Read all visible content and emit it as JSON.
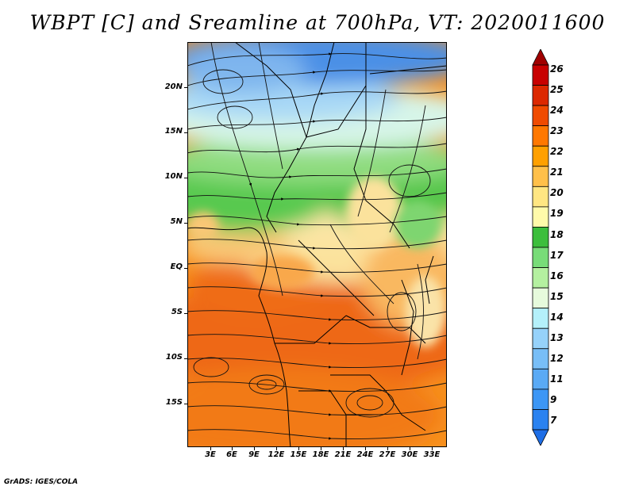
{
  "title": "WBPT [C] and Sreamline at 700hPa, VT: 2020011600",
  "footer": "GrADS: IGES/COLA",
  "lat_labels": [
    "20N",
    "15N",
    "10N",
    "5N",
    "EQ",
    "5S",
    "10S",
    "15S"
  ],
  "lon_labels": [
    "3E",
    "6E",
    "9E",
    "12E",
    "15E",
    "18E",
    "21E",
    "24E",
    "27E",
    "30E",
    "33E"
  ],
  "colorbar": {
    "labels": [
      "7",
      "9",
      "11",
      "12",
      "13",
      "14",
      "15",
      "16",
      "17",
      "18",
      "19",
      "20",
      "21",
      "22",
      "23",
      "24",
      "25",
      "26"
    ],
    "colors": [
      "#1e6ee6",
      "#2a82f0",
      "#3c96f5",
      "#5aaaf5",
      "#78bef7",
      "#96d2fa",
      "#b4f0fa",
      "#e6fadc",
      "#b4f0a0",
      "#78dc78",
      "#3cbe3c",
      "#fffaaa",
      "#ffe682",
      "#ffc04a",
      "#ffa000",
      "#ff7800",
      "#f04b00",
      "#dc2800",
      "#c80000",
      "#a00000"
    ]
  },
  "colors": {
    "cold_blue": "#3f85e3",
    "green": "#4cc746",
    "yellow": "#ffe79a",
    "orange": "#f47a1a"
  }
}
